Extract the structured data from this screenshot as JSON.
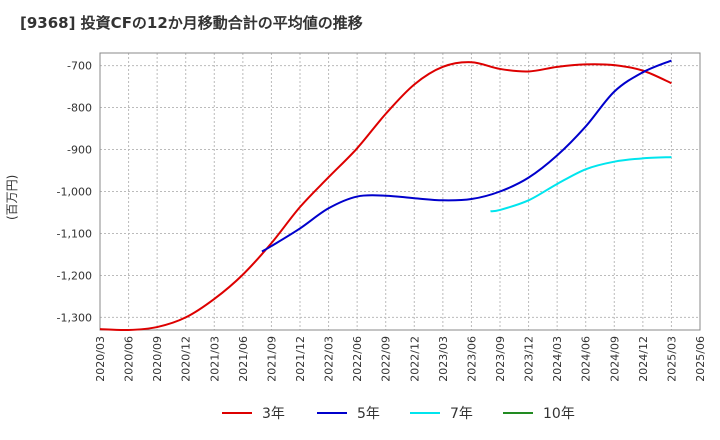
{
  "chart_data": {
    "type": "line",
    "title": "[9368]  投資CFの12か月移動合計の平均値の推移",
    "ylabel": "(百万円)",
    "xlabel": "",
    "x_ticks": [
      "2020/03",
      "2020/06",
      "2020/09",
      "2020/12",
      "2021/03",
      "2021/06",
      "2021/09",
      "2021/12",
      "2022/03",
      "2022/06",
      "2022/09",
      "2022/12",
      "2023/03",
      "2023/06",
      "2023/09",
      "2023/12",
      "2024/03",
      "2024/06",
      "2024/09",
      "2024/12",
      "2025/03",
      "2025/06"
    ],
    "y_ticks": [
      -700,
      -800,
      -900,
      -1000,
      -1100,
      -1200,
      -1300
    ],
    "y_tick_labels": [
      "-700",
      "-800",
      "-900",
      "-1,000",
      "-1,100",
      "-1,200",
      "-1,300"
    ],
    "ylim": [
      -1330,
      -670
    ],
    "grid": true,
    "legend_position": "bottom",
    "series": [
      {
        "name": "3年",
        "color": "#dd0000",
        "x": [
          "2020/03",
          "2020/06",
          "2020/09",
          "2020/12",
          "2021/03",
          "2021/06",
          "2021/09",
          "2021/12",
          "2022/03",
          "2022/06",
          "2022/09",
          "2022/12",
          "2023/03",
          "2023/06",
          "2023/09",
          "2023/12",
          "2024/03",
          "2024/06",
          "2024/09",
          "2024/12",
          "2025/03"
        ],
        "values": [
          -1328,
          -1330,
          -1323,
          -1300,
          -1256,
          -1198,
          -1123,
          -1037,
          -966,
          -897,
          -815,
          -745,
          -703,
          -692,
          -708,
          -714,
          -703,
          -697,
          -699,
          -712,
          -742
        ]
      },
      {
        "name": "5年",
        "color": "#0000cc",
        "x": [
          "2021/08",
          "2021/09",
          "2021/12",
          "2022/03",
          "2022/06",
          "2022/09",
          "2022/12",
          "2023/03",
          "2023/06",
          "2023/09",
          "2023/12",
          "2024/03",
          "2024/06",
          "2024/09",
          "2024/12",
          "2025/03"
        ],
        "values": [
          -1143,
          -1130,
          -1088,
          -1040,
          -1012,
          -1010,
          -1016,
          -1021,
          -1018,
          -1000,
          -967,
          -914,
          -845,
          -762,
          -716,
          -688
        ]
      },
      {
        "name": "7年",
        "color": "#00e5ee",
        "x": [
          "2023/08",
          "2023/09",
          "2023/12",
          "2024/03",
          "2024/06",
          "2024/09",
          "2024/12",
          "2025/03"
        ],
        "values": [
          -1047,
          -1044,
          -1021,
          -982,
          -947,
          -929,
          -921,
          -918
        ]
      },
      {
        "name": "10年",
        "color": "#228b22",
        "x": [],
        "values": []
      }
    ]
  }
}
